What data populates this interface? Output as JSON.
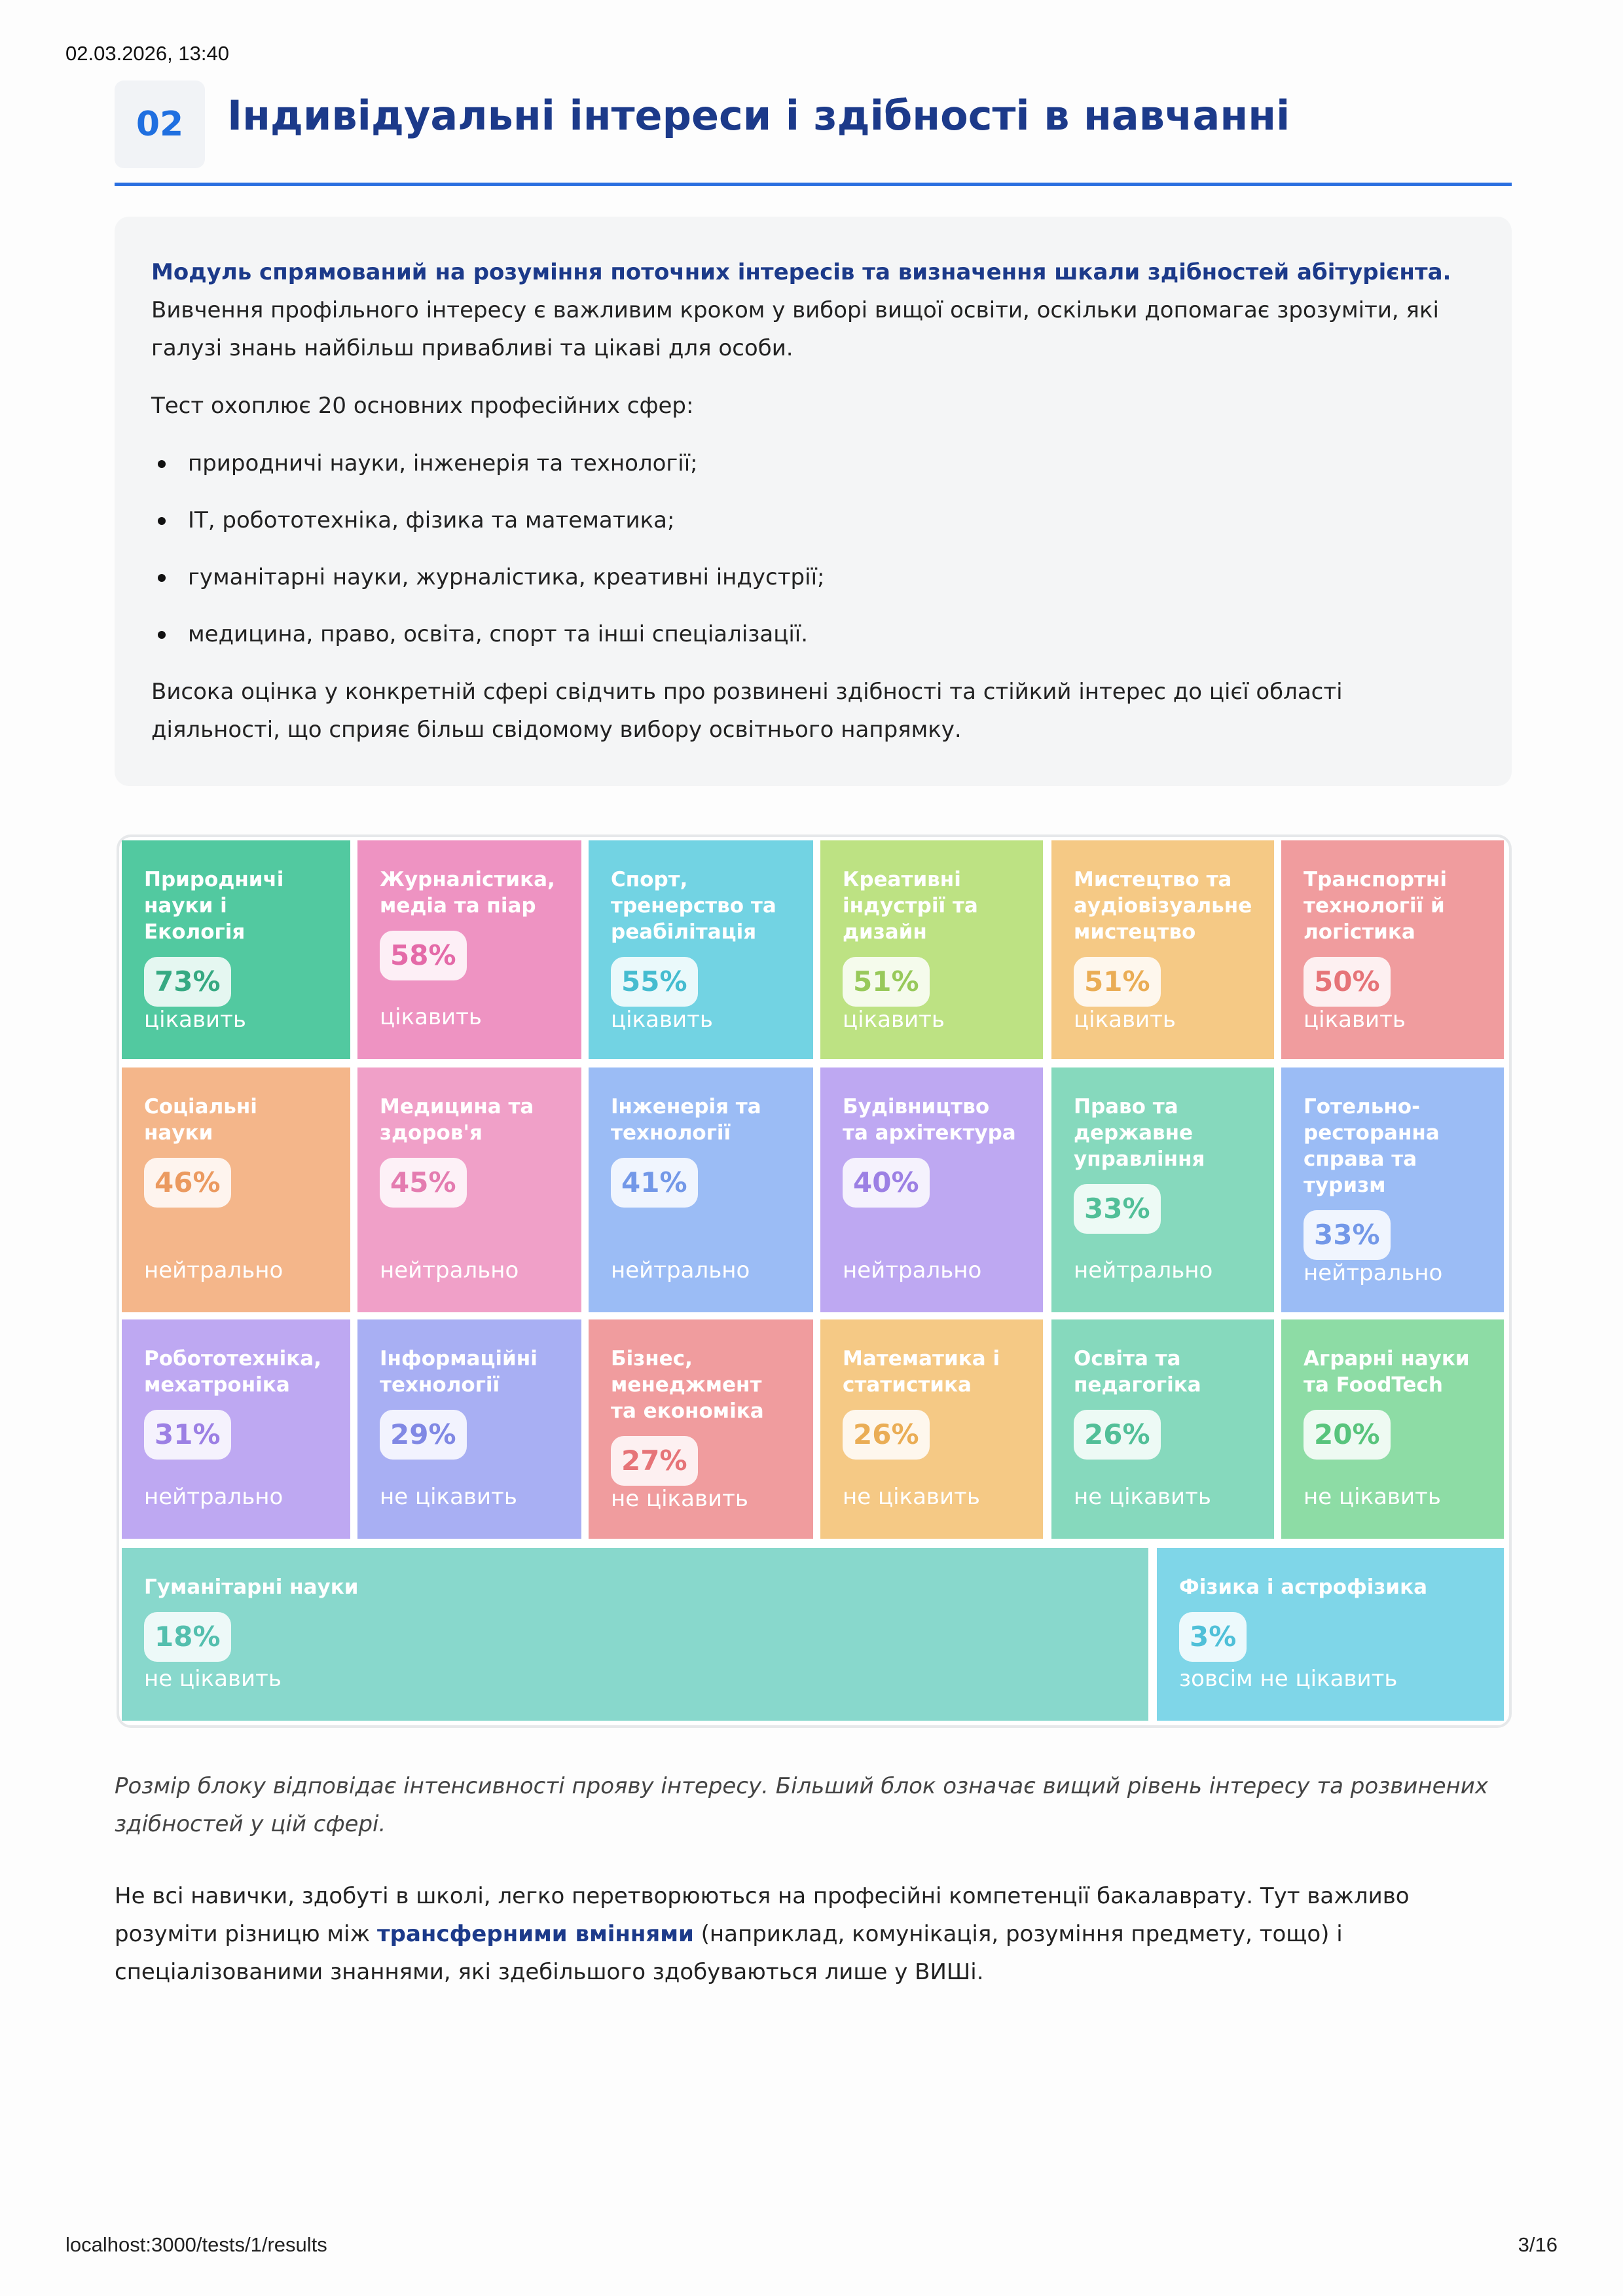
{
  "header": {
    "timestamp": "02.03.2026, 13:40",
    "section_number": "02",
    "title": "Індивідуальні інтереси і здібності в навчанні"
  },
  "intro": {
    "lead_bold": "Модуль спрямований на розуміння поточних інтересів та визначення шкали здібностей абітурієнта.",
    "lead_rest": " Вивчення профільного інтересу є важливим кроком у виборі вищої освіти, оскільки допомагає зрозуміти, які галузі знань найбільш привабливі та цікаві для особи.",
    "list_intro": "Тест охоплює 20 основних професійних сфер:",
    "items": [
      "природничі науки, інженерія та технології;",
      "IT, робототехніка, фізика та математика;",
      "гуманітарні науки, журналістика, креативні індустрії;",
      "медицина, право, освіта, спорт та інші спеціалізації."
    ],
    "conclusion": "Висока оцінка у конкретній сфері свідчить про розвинені здібності та стійкий інтерес до цієї області діяльності, що сприяє більш свідомому вибору освітнього напрямку."
  },
  "treemap": [
    {
      "name": "Природничі науки і Екологія",
      "percent": "73%",
      "status": "цікавить",
      "color": "#52c9a0",
      "text": "#36a982"
    },
    {
      "name": "Журналістика, медіа та піар",
      "percent": "58%",
      "status": "цікавить",
      "color": "#ee93c2",
      "text": "#e46aa8"
    },
    {
      "name": "Спорт, тренерство та реабілітація",
      "percent": "55%",
      "status": "цікавить",
      "color": "#72d3e3",
      "text": "#45bcd0"
    },
    {
      "name": "Креативні індустрії та дизайн",
      "percent": "51%",
      "status": "цікавить",
      "color": "#bde283",
      "text": "#98c95a"
    },
    {
      "name": "Мистецтво та аудіовізуальне мистецтво",
      "percent": "51%",
      "status": "цікавить",
      "color": "#f5c985",
      "text": "#eaad55"
    },
    {
      "name": "Транспортні технології й логістика",
      "percent": "50%",
      "status": "цікавить",
      "color": "#f09c9e",
      "text": "#e67478"
    },
    {
      "name": "Соціальні науки",
      "percent": "46%",
      "status": "нейтрально",
      "color": "#f4b68a",
      "text": "#eb9a60"
    },
    {
      "name": "Медицина та здоров'я",
      "percent": "45%",
      "status": "нейтрально",
      "color": "#f0a0c8",
      "text": "#e47cb0"
    },
    {
      "name": "Інженерія та технології",
      "percent": "41%",
      "status": "нейтрально",
      "color": "#9bbcf5",
      "text": "#7398e8"
    },
    {
      "name": "Будівництво та архітектура",
      "percent": "40%",
      "status": "нейтрально",
      "color": "#bea8f2",
      "text": "#9c80e4"
    },
    {
      "name": "Право та державне управління",
      "percent": "33%",
      "status": "нейтрально",
      "color": "#86d9bd",
      "text": "#52bf98"
    },
    {
      "name": "Готельно-ресторанна справа та туризм",
      "percent": "33%",
      "status": "нейтрально",
      "color": "#9bbcf5",
      "text": "#7398e8"
    },
    {
      "name": "Робототехніка, мехатроніка",
      "percent": "31%",
      "status": "нейтрально",
      "color": "#bea8f2",
      "text": "#9c80e4"
    },
    {
      "name": "Інформаційні технології",
      "percent": "29%",
      "status": "не цікавить",
      "color": "#a8aff3",
      "text": "#8088e4"
    },
    {
      "name": "Бізнес, менеджмент та економіка",
      "percent": "27%",
      "status": "не цікавить",
      "color": "#f09c9e",
      "text": "#e67478"
    },
    {
      "name": "Математика і статистика",
      "percent": "26%",
      "status": "не цікавить",
      "color": "#f5c985",
      "text": "#eaad55"
    },
    {
      "name": "Освіта та педагогіка",
      "percent": "26%",
      "status": "не цікавить",
      "color": "#86d9bd",
      "text": "#52bf98"
    },
    {
      "name": "Аграрні науки та FoodTech",
      "percent": "20%",
      "status": "не цікавить",
      "color": "#8ddca5",
      "text": "#58c47c"
    },
    {
      "name": "Гуманітарні науки",
      "percent": "18%",
      "status": "не цікавить",
      "color": "#88d8cc",
      "text": "#54bfae"
    },
    {
      "name": "Фізика і астрофізика",
      "percent": "3%",
      "status": "зовсім не цікавить",
      "color": "#7fd6e8",
      "text": "#4fc0d8"
    }
  ],
  "caption": "Розмір блоку відповідає інтенсивності прояву інтересу. Більший блок означає вищий рівень інтересу та розвинених здібностей у цій сфері.",
  "skills": {
    "before": "Не всі навички, здобуті в школі, легко перетворюються на професійні компетенції бакалаврату. Тут важливо розуміти різницю між ",
    "bold": "трансферними вміннями",
    "after": " (наприклад, комунікація, розуміння предмету, тощо) і спеціалізованими знаннями, які здебільшого здобуваються лише у ВИШі."
  },
  "footer": {
    "url": "localhost:3000/tests/1/results",
    "page": "3/16"
  }
}
